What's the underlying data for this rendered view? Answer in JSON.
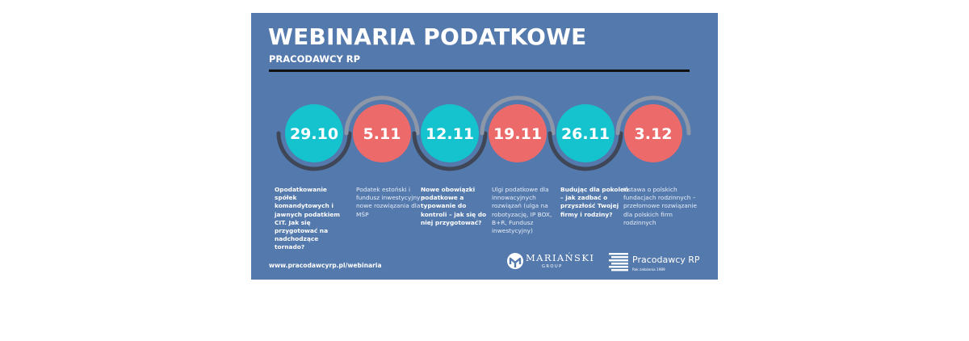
{
  "header": {
    "title": "WEBINARIA PODATKOWE",
    "subtitle": "PRACODAWCY RP"
  },
  "colors": {
    "background": "#5479ad",
    "teal": "#15c3cf",
    "coral": "#ec6a6a",
    "arc": "#8d97a7",
    "dark_arc": "#3f4656"
  },
  "webinars": [
    {
      "date": "29.10",
      "color": "teal",
      "description": "Opodatkowanie spółek komandytowych i jawnych podatkiem CIT. Jak się przygotować na nadchodzące tornado?"
    },
    {
      "date": "5.11",
      "color": "coral",
      "description": "Podatek estoński i fundusz inwestycyjny – nowe rozwiązania dla MŚP"
    },
    {
      "date": "12.11",
      "color": "teal",
      "description": "Nowe obowiązki podatkowe a typowanie do kontroli – jak się do niej przygotować?"
    },
    {
      "date": "19.11",
      "color": "coral",
      "description": "Ulgi podatkowe dla innowacyjnych rozwiązań (ulga na robotyzację, IP BOX, B+R, Fundusz inwestycyjny)"
    },
    {
      "date": "26.11",
      "color": "teal",
      "description": "Budując dla pokoleń – jak zadbać o przyszłość Twojej firmy i rodziny?"
    },
    {
      "date": "3.12",
      "color": "coral",
      "description": "Ustawa o polskich fundacjach rodzinnych – przełomowe rozwiązanie dla polskich firm rodzinnych"
    }
  ],
  "footer": {
    "url": "www.pracodawcyrp.pl/webinaria",
    "logo_marianski": "MARIAŃSKI",
    "logo_marianski_sub": "GROUP",
    "logo_marianski_icon": "marianski-m-icon",
    "logo_pracodawcy": "Pracodawcy RP",
    "logo_pracodawcy_sub": "Rok założenia 1989",
    "logo_pracodawcy_icon": "pracodawcy-stripes-icon"
  }
}
